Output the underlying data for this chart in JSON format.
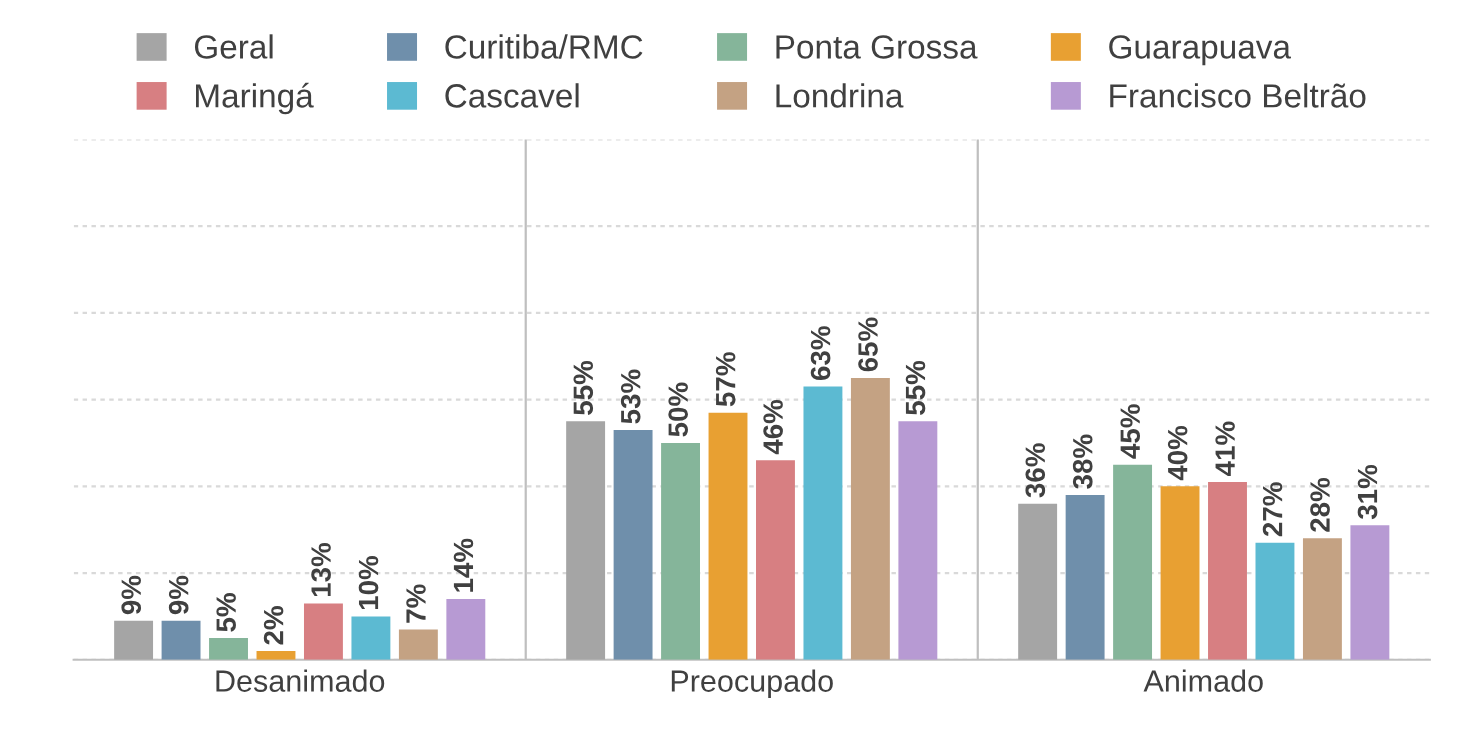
{
  "chart_data": {
    "type": "bar",
    "categories": [
      "Desanimado",
      "Preocupado",
      "Animado"
    ],
    "series": [
      {
        "name": "Geral",
        "color": "#a5a5a5",
        "values": [
          9,
          55,
          36
        ],
        "value_labels": [
          "9%",
          "55%",
          "36%"
        ]
      },
      {
        "name": "Curitiba/RMC",
        "color": "#6f8fab",
        "values": [
          9,
          53,
          38
        ],
        "value_labels": [
          "9%",
          "53%",
          "38%"
        ]
      },
      {
        "name": "Ponta Grossa",
        "color": "#85b59a",
        "values": [
          5,
          50,
          45
        ],
        "value_labels": [
          "5%",
          "50%",
          "45%"
        ]
      },
      {
        "name": "Guarapuava",
        "color": "#e8a032",
        "values": [
          2,
          57,
          40
        ],
        "value_labels": [
          "2%",
          "57%",
          "40%"
        ]
      },
      {
        "name": "Maringá",
        "color": "#d77f82",
        "values": [
          13,
          46,
          41
        ],
        "value_labels": [
          "13%",
          "46%",
          "41%"
        ]
      },
      {
        "name": "Cascavel",
        "color": "#5cbad2",
        "values": [
          10,
          63,
          27
        ],
        "value_labels": [
          "10%",
          "63%",
          "27%"
        ]
      },
      {
        "name": "Londrina",
        "color": "#c4a283",
        "values": [
          7,
          65,
          28
        ],
        "value_labels": [
          "7%",
          "65%",
          "28%"
        ]
      },
      {
        "name": "Francisco Beltrão",
        "color": "#b79ad3",
        "values": [
          14,
          55,
          31
        ],
        "value_labels": [
          "14%",
          "55%",
          "31%"
        ]
      }
    ],
    "ylim": [
      0,
      120
    ],
    "yticks": [
      {
        "value": 0,
        "label": null
      },
      {
        "value": 20,
        "label": null
      },
      {
        "value": 40,
        "label": null
      },
      {
        "value": 60,
        "label": null
      },
      {
        "value": 80,
        "label": null
      },
      {
        "value": 100,
        "label": null
      },
      {
        "value": 120,
        "label": null
      }
    ],
    "grid": "y",
    "legend": "top",
    "tick_labels": "x"
  }
}
